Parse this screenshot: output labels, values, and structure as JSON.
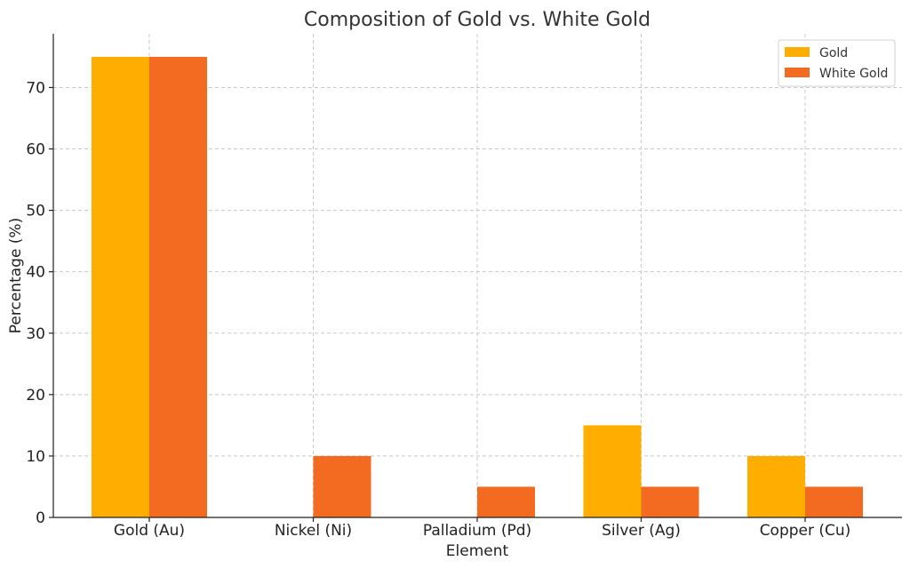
{
  "chart_data": {
    "type": "bar",
    "title": "Composition of Gold vs. White Gold",
    "xlabel": "Element",
    "ylabel": "Percentage (%)",
    "categories": [
      "Gold (Au)",
      "Nickel (Ni)",
      "Palladium (Pd)",
      "Silver (Ag)",
      "Copper (Cu)"
    ],
    "series": [
      {
        "name": "Gold",
        "color": "#FFAE00",
        "values": [
          75,
          0,
          0,
          15,
          10
        ]
      },
      {
        "name": "White Gold",
        "color": "#F26B21",
        "values": [
          75,
          10,
          5,
          5,
          5
        ]
      }
    ],
    "ylim": [
      0,
      78.75
    ],
    "yticks": [
      0,
      10,
      20,
      30,
      40,
      50,
      60,
      70
    ],
    "grid": true,
    "legend_position": "top-right"
  }
}
